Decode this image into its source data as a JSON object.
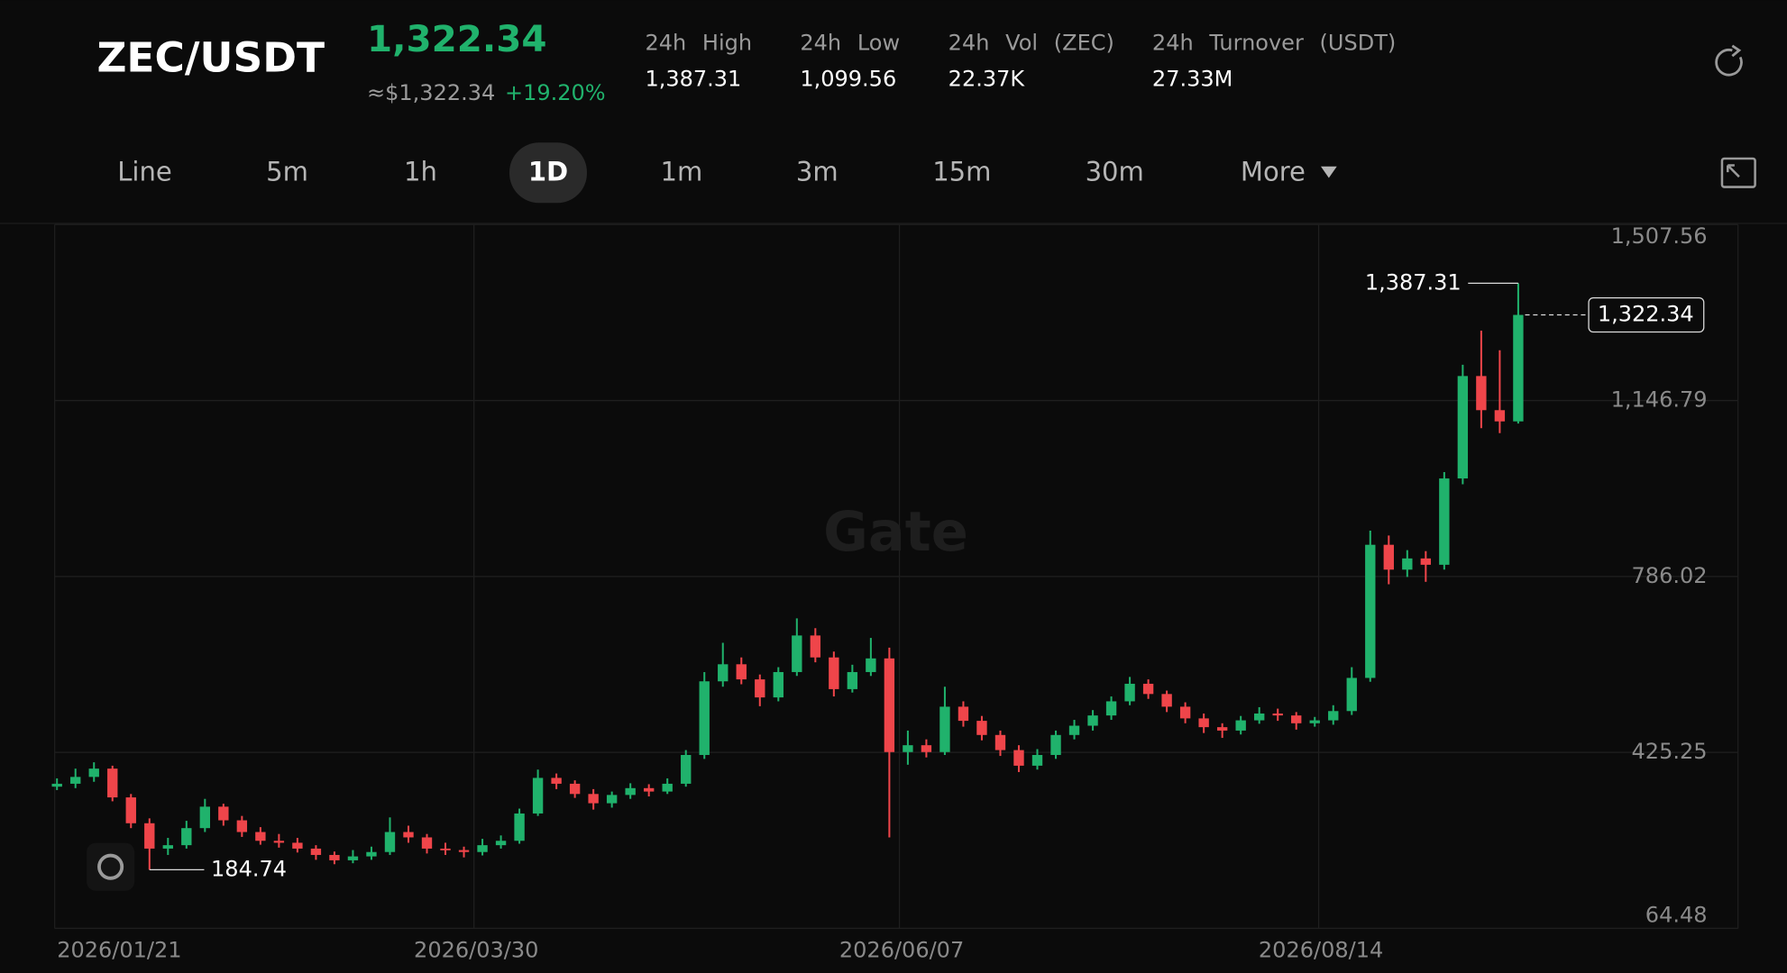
{
  "header": {
    "pair": "ZEC/USDT",
    "price": "1,322.34",
    "approx": "≈$1,322.34",
    "change": "+19.20%",
    "stats": [
      {
        "label": "24h High",
        "value": "1,387.31"
      },
      {
        "label": "24h Low",
        "value": "1,099.56"
      },
      {
        "label": "24h Vol (ZEC)",
        "value": "22.37K"
      },
      {
        "label": "24h Turnover (USDT)",
        "value": "27.33M"
      }
    ]
  },
  "tabs": [
    "Line",
    "5m",
    "1h",
    "1D",
    "1m",
    "3m",
    "15m",
    "30m",
    "More"
  ],
  "active_tab": "1D",
  "watermark": "Gate",
  "chart_data": {
    "type": "candlestick",
    "up_color": "#20b26c",
    "down_color": "#ef454a",
    "x": [
      "2026/01/21",
      "2026/01/24",
      "2026/01/27",
      "2026/01/30",
      "2026/02/02",
      "2026/02/05",
      "2026/02/08",
      "2026/02/11",
      "2026/02/14",
      "2026/02/17",
      "2026/02/20",
      "2026/02/23",
      "2026/02/26",
      "2026/03/01",
      "2026/03/04",
      "2026/03/07",
      "2026/03/10",
      "2026/03/13",
      "2026/03/16",
      "2026/03/19",
      "2026/03/22",
      "2026/03/25",
      "2026/03/28",
      "2026/03/31",
      "2026/04/03",
      "2026/04/06",
      "2026/04/09",
      "2026/04/12",
      "2026/04/15",
      "2026/04/18",
      "2026/04/21",
      "2026/04/24",
      "2026/04/27",
      "2026/04/30",
      "2026/05/03",
      "2026/05/06",
      "2026/05/09",
      "2026/05/12",
      "2026/05/15",
      "2026/05/18",
      "2026/05/21",
      "2026/05/24",
      "2026/05/27",
      "2026/05/30",
      "2026/06/02",
      "2026/06/05",
      "2026/06/08",
      "2026/06/11",
      "2026/06/14",
      "2026/06/17",
      "2026/06/20",
      "2026/06/23",
      "2026/06/26",
      "2026/06/29",
      "2026/07/02",
      "2026/07/05",
      "2026/07/08",
      "2026/07/11",
      "2026/07/14",
      "2026/07/17",
      "2026/07/20",
      "2026/07/23",
      "2026/07/26",
      "2026/07/29",
      "2026/08/01",
      "2026/08/04",
      "2026/08/07",
      "2026/08/10",
      "2026/08/13",
      "2026/08/16",
      "2026/08/19",
      "2026/08/22",
      "2026/08/25",
      "2026/08/28",
      "2026/08/31",
      "2026/09/03",
      "2026/09/06",
      "2026/09/09",
      "2026/09/12",
      "2026/09/15"
    ],
    "open": [
      355,
      361,
      375,
      392,
      333,
      280,
      228,
      235,
      270,
      314,
      286,
      262,
      244,
      240,
      228,
      215,
      204,
      212,
      221,
      262,
      251,
      228,
      225,
      221,
      235,
      244,
      300,
      373,
      361,
      340,
      321,
      338,
      352,
      345,
      361,
      420,
      571,
      606,
      575,
      538,
      590,
      665,
      620,
      555,
      590,
      618,
      426,
      440,
      426,
      519,
      490,
      461,
      430,
      398,
      420,
      461,
      480,
      501,
      530,
      566,
      545,
      519,
      495,
      477,
      470,
      491,
      505,
      501,
      485,
      491,
      510,
      578,
      851,
      800,
      823,
      810,
      987,
      1197,
      1127,
      1104
    ],
    "high": [
      372,
      392,
      405,
      398,
      340,
      290,
      250,
      285,
      330,
      320,
      295,
      272,
      258,
      250,
      235,
      222,
      225,
      232,
      292,
      275,
      258,
      240,
      232,
      248,
      255,
      310,
      390,
      382,
      368,
      350,
      345,
      362,
      360,
      372,
      430,
      590,
      650,
      620,
      585,
      600,
      700,
      680,
      632,
      605,
      660,
      640,
      470,
      452,
      560,
      530,
      500,
      470,
      440,
      432,
      470,
      492,
      512,
      540,
      580,
      575,
      552,
      528,
      505,
      485,
      500,
      518,
      515,
      508,
      498,
      522,
      600,
      880,
      870,
      840,
      838,
      1000,
      1220,
      1290,
      1250,
      1387.31
    ],
    "low": [
      348,
      352,
      365,
      325,
      270,
      184.74,
      215,
      228,
      262,
      275,
      252,
      236,
      230,
      220,
      205,
      196,
      198,
      205,
      215,
      240,
      218,
      215,
      210,
      214,
      228,
      238,
      295,
      350,
      332,
      308,
      312,
      330,
      335,
      340,
      355,
      412,
      560,
      565,
      520,
      530,
      582,
      610,
      540,
      548,
      582,
      251,
      400,
      415,
      420,
      478,
      450,
      418,
      385,
      390,
      412,
      452,
      470,
      492,
      522,
      535,
      508,
      485,
      465,
      455,
      462,
      484,
      490,
      472,
      478,
      482,
      502,
      570,
      770,
      785,
      775,
      800,
      975,
      1090,
      1080,
      1099.56
    ],
    "close": [
      361,
      375,
      392,
      333,
      280,
      228,
      235,
      270,
      314,
      286,
      262,
      244,
      240,
      228,
      215,
      204,
      212,
      221,
      262,
      251,
      228,
      225,
      221,
      235,
      244,
      300,
      373,
      361,
      340,
      321,
      338,
      352,
      345,
      361,
      420,
      571,
      606,
      575,
      538,
      590,
      665,
      620,
      555,
      590,
      618,
      426,
      440,
      426,
      519,
      490,
      461,
      430,
      398,
      420,
      461,
      480,
      501,
      530,
      566,
      545,
      519,
      495,
      477,
      470,
      491,
      505,
      501,
      485,
      491,
      510,
      578,
      851,
      800,
      823,
      810,
      987,
      1197,
      1127,
      1104,
      1322.34
    ],
    "ylim": [
      64.48,
      1507.56
    ],
    "yticks": [
      64.48,
      425.25,
      786.02,
      {
        "value": 1146.79,
        "label": "1,146.79"
      },
      {
        "value": 1507.56,
        "label": "1,507.56"
      }
    ],
    "xticks": [
      "2026/01/21",
      "2026/03/30",
      "2026/06/07",
      "2026/08/14"
    ],
    "annotations": {
      "high": "1,387.31",
      "low": "184.74",
      "last": "1,322.34"
    },
    "grid": true
  }
}
